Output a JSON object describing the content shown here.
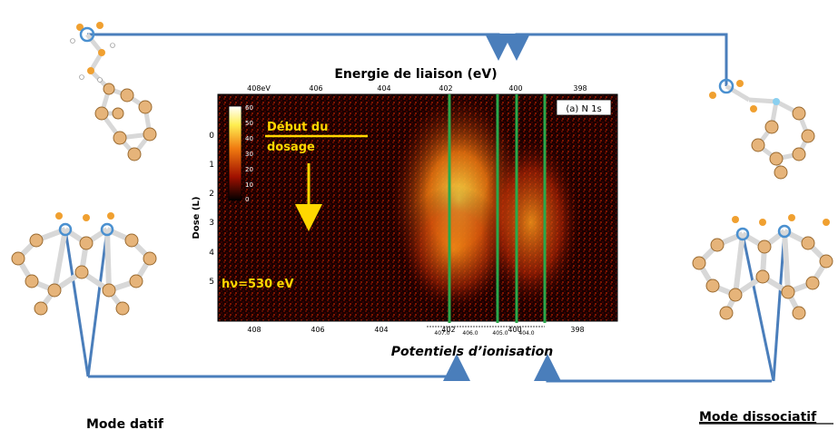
{
  "title": "Energie de liaison (eV)",
  "top_ticks": [
    "408eV",
    "406",
    "404",
    "402",
    "400",
    "398"
  ],
  "bottom_ticks": [
    "408",
    "406",
    "404",
    "402",
    "400",
    "398"
  ],
  "y_axis_label": "Dose (L)",
  "y_ticks": [
    "0",
    "1",
    "2",
    "3",
    "4",
    "5"
  ],
  "panel_label": "(a) N 1s",
  "colorbar_ticks": [
    "60",
    "50",
    "40",
    "30",
    "20",
    "10",
    "0"
  ],
  "annotation_start_line1": "Début du",
  "annotation_start_line2": "dosage",
  "photon_energy": "hν=530 eV",
  "ip_ticks": [
    "407.0",
    "406.0",
    "405.0",
    "404.0"
  ],
  "ip_label": "Potentiels d’ionisation",
  "mode_left": "Mode datif",
  "mode_right": "Mode dissociatif",
  "colors": {
    "arrow": "#4a7ebb",
    "guide_lines": "#2aa84a",
    "annotation": "#ffd700",
    "atom_carbon": "#e6b47a",
    "atom_nitrogen": "#f0a030",
    "atom_highlight": "#4a90d0"
  }
}
